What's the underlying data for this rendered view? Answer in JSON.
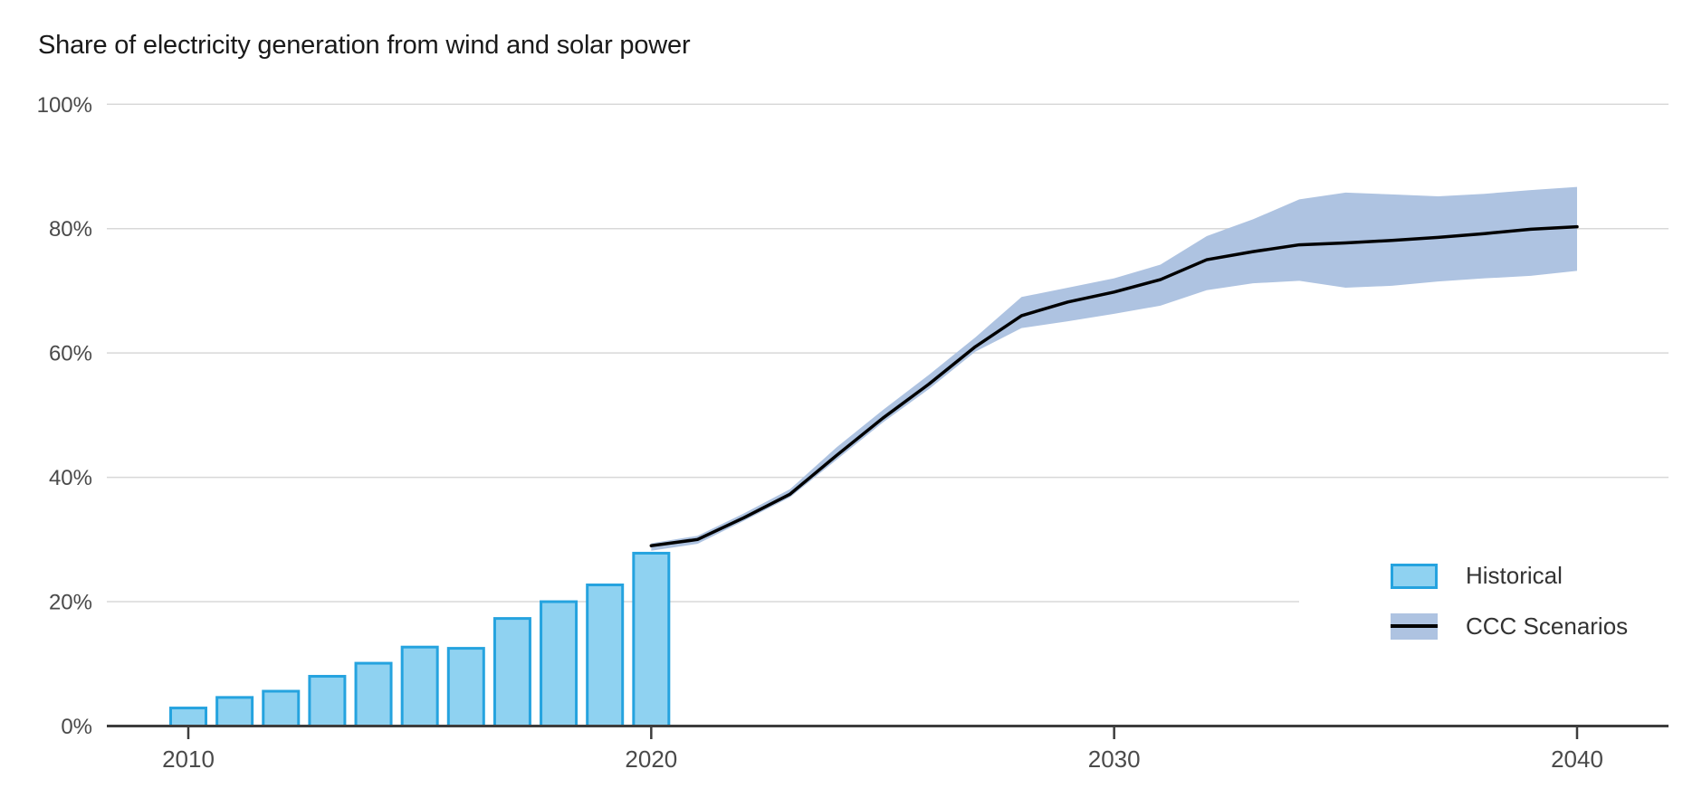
{
  "title": "Share of electricity generation from wind and solar power",
  "legend": {
    "items": [
      {
        "label": "Historical",
        "swatch": "bar"
      },
      {
        "label": "CCC Scenarios",
        "swatch": "band-with-line"
      }
    ],
    "position": "right-middle"
  },
  "colors": {
    "bar_fill": "#8FD2F1",
    "bar_border": "#25A3DF",
    "band": "#AEC3E1",
    "line": "#000000",
    "gridline": "#D8D8D8",
    "axis": "#3D3D3D",
    "tick_label": "#4A4A4A",
    "title_text": "#1A1A1A"
  },
  "chart_data": {
    "type": "combo",
    "title": "Share of electricity generation from wind and solar power",
    "xlabel": "",
    "ylabel": "",
    "ylim": [
      0,
      100
    ],
    "xlim": [
      2008,
      2042
    ],
    "grid": "horizontal",
    "legend_position": "right-middle",
    "y_ticks": [
      {
        "value": 0,
        "label": "0%"
      },
      {
        "value": 20,
        "label": "20%"
      },
      {
        "value": 40,
        "label": "40%"
      },
      {
        "value": 60,
        "label": "60%"
      },
      {
        "value": 80,
        "label": "80%"
      },
      {
        "value": 100,
        "label": "100%"
      }
    ],
    "x_ticks": [
      {
        "value": 2010,
        "label": "2010"
      },
      {
        "value": 2020,
        "label": "2020"
      },
      {
        "value": 2030,
        "label": "2030"
      },
      {
        "value": 2040,
        "label": "2040"
      }
    ],
    "series": [
      {
        "name": "Historical",
        "type": "bar",
        "x": [
          2010,
          2011,
          2012,
          2013,
          2014,
          2015,
          2016,
          2017,
          2018,
          2019,
          2020
        ],
        "values": [
          2.9,
          4.6,
          5.6,
          8.0,
          10.1,
          12.7,
          12.5,
          17.3,
          20.0,
          22.7,
          27.8
        ]
      },
      {
        "name": "CCC Scenarios",
        "type": "line-with-band",
        "x": [
          2020,
          2021,
          2022,
          2023,
          2024,
          2025,
          2026,
          2027,
          2028,
          2029,
          2030,
          2031,
          2032,
          2033,
          2034,
          2035,
          2036,
          2037,
          2038,
          2039,
          2040
        ],
        "values": [
          29.0,
          30.0,
          33.5,
          37.3,
          43.5,
          49.5,
          55.0,
          61.0,
          66.0,
          68.2,
          69.8,
          71.8,
          75.0,
          76.3,
          77.4,
          77.7,
          78.1,
          78.6,
          79.2,
          79.9,
          80.3
        ],
        "band_upper": [
          29.4,
          30.6,
          34.2,
          38.1,
          44.8,
          50.8,
          56.5,
          62.5,
          69.0,
          70.5,
          72.0,
          74.2,
          78.8,
          81.5,
          84.7,
          85.8,
          85.5,
          85.2,
          85.6,
          86.2,
          86.7
        ],
        "band_lower": [
          28.2,
          29.3,
          33.0,
          36.8,
          42.8,
          48.8,
          54.2,
          60.2,
          64.0,
          65.1,
          66.3,
          67.6,
          70.1,
          71.2,
          71.6,
          70.5,
          70.8,
          71.5,
          72.0,
          72.4,
          73.2
        ]
      }
    ]
  }
}
